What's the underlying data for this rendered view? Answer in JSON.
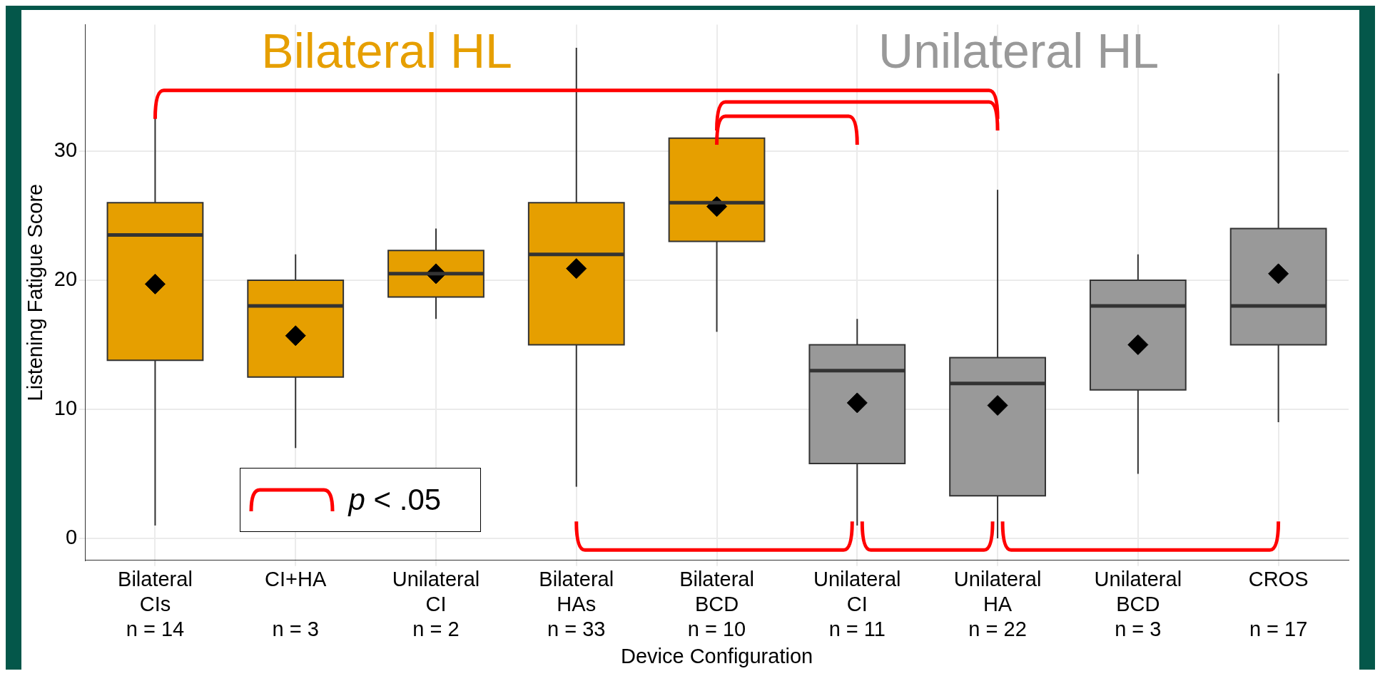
{
  "chart_data": {
    "type": "box",
    "xlabel": "Device Configuration",
    "ylabel": "Listening Fatigue Score",
    "categories": [
      "Bilateral\nCIs\nn = 14",
      "CI+HA\n\nn = 3",
      "Unilateral\nCI\nn = 2",
      "Bilateral\nHAs\nn = 33",
      "Bilateral\nBCD\nn = 10",
      "Unilateral\nCI\nn = 11",
      "Unilateral\nHA\nn = 22",
      "Unilateral\nBCD\nn = 3",
      "CROS\n\nn = 17"
    ],
    "colors": [
      "#e69f00",
      "#e69f00",
      "#e69f00",
      "#e69f00",
      "#e69f00",
      "#999999",
      "#999999",
      "#999999",
      "#999999"
    ],
    "boxes": [
      {
        "low": 1,
        "q1": 13.8,
        "median": 23.5,
        "q3": 26,
        "high": 33,
        "mean": 19.7
      },
      {
        "low": 7,
        "q1": 12.5,
        "median": 18,
        "q3": 20,
        "high": 22,
        "mean": 15.7
      },
      {
        "low": 17,
        "q1": 18.7,
        "median": 20.5,
        "q3": 22.3,
        "high": 24,
        "mean": 20.5
      },
      {
        "low": 4,
        "q1": 15,
        "median": 22,
        "q3": 26,
        "high": 38,
        "mean": 20.9
      },
      {
        "low": 16,
        "q1": 23,
        "median": 26,
        "q3": 31,
        "high": 31,
        "mean": 25.7
      },
      {
        "low": 1,
        "q1": 5.8,
        "median": 13,
        "q3": 15,
        "high": 17,
        "mean": 10.5
      },
      {
        "low": 0,
        "q1": 3.3,
        "median": 12,
        "q3": 14,
        "high": 27,
        "mean": 10.3
      },
      {
        "low": 5,
        "q1": 11.5,
        "median": 18,
        "q3": 20,
        "high": 22,
        "mean": 15
      },
      {
        "low": 9,
        "q1": 15,
        "median": 18,
        "q3": 24,
        "high": 36,
        "mean": 20.5
      }
    ],
    "ylim": [
      -1.7,
      39.8
    ],
    "yticks": [
      0,
      10,
      20,
      30
    ],
    "grid": true,
    "marker": "diamond",
    "annotations": [
      "Bilateral HL",
      "Unilateral HL",
      "p < .05"
    ]
  }
}
